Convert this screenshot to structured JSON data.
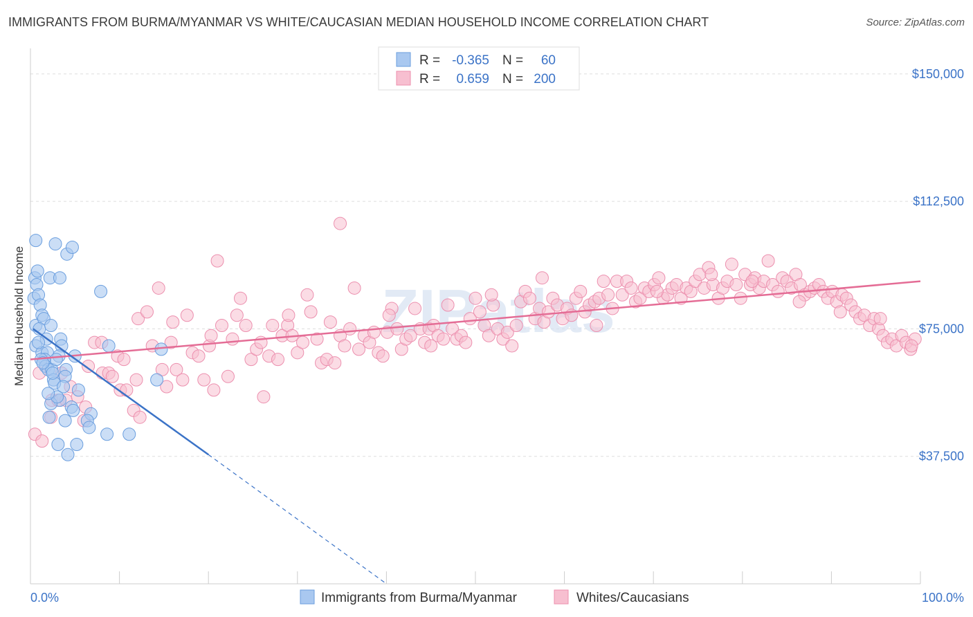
{
  "title": "IMMIGRANTS FROM BURMA/MYANMAR VS WHITE/CAUCASIAN MEDIAN HOUSEHOLD INCOME CORRELATION CHART",
  "source": "Source: ZipAtlas.com",
  "watermark": "ZIPatlas",
  "colors": {
    "blue_fill": "#a9c8f0",
    "blue_stroke": "#6a9ede",
    "blue_line": "#3b73c7",
    "pink_fill": "#f7bfd0",
    "pink_stroke": "#ec8fae",
    "pink_line": "#e46c95",
    "axis_text": "#3b73c7",
    "grid": "#dddddd"
  },
  "legend": {
    "rows": [
      {
        "r_label": "R = ",
        "r_value": "-0.365",
        "n_label": "N = ",
        "n_value": "60"
      },
      {
        "r_label": "R = ",
        "r_value": "0.659",
        "n_label": "N = ",
        "n_value": "200"
      }
    ]
  },
  "chart_data": {
    "type": "scatter",
    "title": "IMMIGRANTS FROM BURMA/MYANMAR VS WHITE/CAUCASIAN MEDIAN HOUSEHOLD INCOME CORRELATION CHART",
    "xlabel": "",
    "ylabel": "Median Household Income",
    "xlim": [
      0,
      100
    ],
    "ylim": [
      0,
      157500
    ],
    "x_tick_labels": [
      "0.0%",
      "100.0%"
    ],
    "y_ticks": [
      37500,
      75000,
      112500,
      150000
    ],
    "y_tick_labels": [
      "$37,500",
      "$75,000",
      "$112,500",
      "$150,000"
    ],
    "grid": true,
    "series": [
      {
        "name": "Immigrants from Burma/Myanmar",
        "color": "#a9c8f0",
        "r": -0.365,
        "n": 60,
        "trend": {
          "x0": 0.3,
          "y0": 75000,
          "x1": 20,
          "y1": 38000,
          "dash_x1": 40,
          "dash_y1": 0
        },
        "points": [
          [
            0.6,
            101000
          ],
          [
            0.5,
            90000
          ],
          [
            0.8,
            92000
          ],
          [
            0.7,
            88000
          ],
          [
            0.4,
            84000
          ],
          [
            0.9,
            85000
          ],
          [
            1.1,
            82000
          ],
          [
            0.6,
            76000
          ],
          [
            1.3,
            79000
          ],
          [
            1.5,
            78000
          ],
          [
            1.0,
            75000
          ],
          [
            2.3,
            76000
          ],
          [
            2.2,
            90000
          ],
          [
            2.8,
            100000
          ],
          [
            4.1,
            97000
          ],
          [
            4.7,
            99000
          ],
          [
            3.3,
            90000
          ],
          [
            0.6,
            70000
          ],
          [
            1.3,
            68000
          ],
          [
            1.9,
            68000
          ],
          [
            1.6,
            66000
          ],
          [
            1.2,
            66000
          ],
          [
            1.7,
            64000
          ],
          [
            2.0,
            63000
          ],
          [
            2.4,
            63000
          ],
          [
            3.4,
            72000
          ],
          [
            3.5,
            70000
          ],
          [
            3.2,
            67000
          ],
          [
            2.9,
            66000
          ],
          [
            4.0,
            63000
          ],
          [
            3.9,
            61000
          ],
          [
            2.6,
            60000
          ],
          [
            2.7,
            59000
          ],
          [
            3.7,
            58000
          ],
          [
            5.4,
            57000
          ],
          [
            3.3,
            54000
          ],
          [
            2.3,
            53000
          ],
          [
            4.6,
            52000
          ],
          [
            4.8,
            51000
          ],
          [
            6.8,
            50000
          ],
          [
            2.1,
            49000
          ],
          [
            3.9,
            48000
          ],
          [
            6.4,
            48000
          ],
          [
            6.6,
            46000
          ],
          [
            8.6,
            44000
          ],
          [
            3.1,
            41000
          ],
          [
            5.2,
            41000
          ],
          [
            4.2,
            38000
          ],
          [
            7.9,
            86000
          ],
          [
            8.8,
            70000
          ],
          [
            14.7,
            69000
          ],
          [
            14.2,
            60000
          ],
          [
            11.1,
            44000
          ],
          [
            1.8,
            72000
          ],
          [
            2.5,
            62000
          ],
          [
            0.9,
            71000
          ],
          [
            3.0,
            55000
          ],
          [
            1.4,
            65000
          ],
          [
            2.0,
            56000
          ],
          [
            5.0,
            67000
          ]
        ]
      },
      {
        "name": "Whites/Caucasians",
        "color": "#f7bfd0",
        "r": 0.659,
        "n": 200,
        "trend": {
          "x0": 0,
          "y0": 66000,
          "x1": 100,
          "y1": 89000
        },
        "points": [
          [
            0.5,
            44000
          ],
          [
            1.3,
            42000
          ],
          [
            2.4,
            54000
          ],
          [
            2.3,
            49000
          ],
          [
            3.1,
            54000
          ],
          [
            4.5,
            58000
          ],
          [
            4.0,
            54000
          ],
          [
            5.3,
            55000
          ],
          [
            6.2,
            52000
          ],
          [
            6.5,
            64000
          ],
          [
            7.2,
            71000
          ],
          [
            8.1,
            62000
          ],
          [
            8.8,
            62000
          ],
          [
            9.2,
            61000
          ],
          [
            9.8,
            67000
          ],
          [
            10.1,
            57000
          ],
          [
            10.8,
            57000
          ],
          [
            11.6,
            51000
          ],
          [
            12.3,
            49000
          ],
          [
            11.9,
            60000
          ],
          [
            12.1,
            78000
          ],
          [
            13.1,
            80000
          ],
          [
            13.7,
            70000
          ],
          [
            14.4,
            87000
          ],
          [
            14.8,
            63000
          ],
          [
            15.3,
            58000
          ],
          [
            15.8,
            71000
          ],
          [
            16.4,
            63000
          ],
          [
            17.1,
            60000
          ],
          [
            17.6,
            79000
          ],
          [
            18.2,
            68000
          ],
          [
            18.9,
            67000
          ],
          [
            19.5,
            60000
          ],
          [
            20.1,
            70000
          ],
          [
            20.6,
            57000
          ],
          [
            21.0,
            95000
          ],
          [
            21.5,
            76000
          ],
          [
            22.2,
            61000
          ],
          [
            22.7,
            72000
          ],
          [
            23.2,
            79000
          ],
          [
            23.6,
            84000
          ],
          [
            24.2,
            76000
          ],
          [
            24.8,
            66000
          ],
          [
            25.4,
            69000
          ],
          [
            25.9,
            71000
          ],
          [
            26.2,
            55000
          ],
          [
            26.8,
            67000
          ],
          [
            27.2,
            76000
          ],
          [
            27.8,
            66000
          ],
          [
            28.3,
            73000
          ],
          [
            28.9,
            76000
          ],
          [
            29.4,
            73000
          ],
          [
            30.0,
            68000
          ],
          [
            30.6,
            71000
          ],
          [
            31.1,
            85000
          ],
          [
            31.5,
            80000
          ],
          [
            32.2,
            72000
          ],
          [
            32.7,
            65000
          ],
          [
            33.3,
            66000
          ],
          [
            33.7,
            77000
          ],
          [
            34.2,
            65000
          ],
          [
            34.8,
            73000
          ],
          [
            34.8,
            106000
          ],
          [
            35.3,
            70000
          ],
          [
            35.9,
            75000
          ],
          [
            36.4,
            87000
          ],
          [
            36.9,
            69000
          ],
          [
            37.5,
            73000
          ],
          [
            38.1,
            71000
          ],
          [
            38.6,
            74000
          ],
          [
            39.1,
            68000
          ],
          [
            39.6,
            67000
          ],
          [
            40.1,
            74000
          ],
          [
            40.6,
            81000
          ],
          [
            41.2,
            75000
          ],
          [
            41.7,
            69000
          ],
          [
            42.2,
            72000
          ],
          [
            42.7,
            73000
          ],
          [
            43.2,
            81000
          ],
          [
            43.8,
            75000
          ],
          [
            44.3,
            71000
          ],
          [
            44.8,
            75000
          ],
          [
            45.3,
            76000
          ],
          [
            45.8,
            73000
          ],
          [
            46.4,
            72000
          ],
          [
            46.9,
            82000
          ],
          [
            47.4,
            75000
          ],
          [
            47.9,
            72000
          ],
          [
            48.4,
            73000
          ],
          [
            48.9,
            71000
          ],
          [
            49.4,
            78000
          ],
          [
            50.0,
            84000
          ],
          [
            50.5,
            80000
          ],
          [
            51.0,
            76000
          ],
          [
            51.5,
            73000
          ],
          [
            52.0,
            82000
          ],
          [
            52.5,
            75000
          ],
          [
            53.1,
            72000
          ],
          [
            53.6,
            74000
          ],
          [
            54.1,
            70000
          ],
          [
            54.6,
            76000
          ],
          [
            55.1,
            83000
          ],
          [
            55.6,
            86000
          ],
          [
            56.1,
            84000
          ],
          [
            56.7,
            78000
          ],
          [
            57.2,
            81000
          ],
          [
            57.7,
            77000
          ],
          [
            58.2,
            80000
          ],
          [
            58.7,
            84000
          ],
          [
            59.2,
            82000
          ],
          [
            59.8,
            78000
          ],
          [
            60.3,
            81000
          ],
          [
            60.8,
            79000
          ],
          [
            61.3,
            84000
          ],
          [
            61.8,
            86000
          ],
          [
            62.3,
            80000
          ],
          [
            62.8,
            82000
          ],
          [
            63.4,
            83000
          ],
          [
            63.9,
            84000
          ],
          [
            64.4,
            89000
          ],
          [
            64.9,
            85000
          ],
          [
            65.4,
            81000
          ],
          [
            65.9,
            89000
          ],
          [
            66.5,
            85000
          ],
          [
            67.0,
            89000
          ],
          [
            67.5,
            87000
          ],
          [
            68.0,
            83000
          ],
          [
            68.5,
            84000
          ],
          [
            69.0,
            87000
          ],
          [
            69.5,
            86000
          ],
          [
            70.1,
            88000
          ],
          [
            70.6,
            90000
          ],
          [
            71.1,
            84000
          ],
          [
            71.6,
            85000
          ],
          [
            72.1,
            87000
          ],
          [
            72.6,
            88000
          ],
          [
            73.1,
            84000
          ],
          [
            73.7,
            87000
          ],
          [
            74.2,
            86000
          ],
          [
            74.7,
            89000
          ],
          [
            75.2,
            91000
          ],
          [
            75.7,
            87000
          ],
          [
            76.2,
            93000
          ],
          [
            76.7,
            88000
          ],
          [
            77.3,
            84000
          ],
          [
            77.8,
            87000
          ],
          [
            78.3,
            89000
          ],
          [
            78.8,
            94000
          ],
          [
            79.3,
            88000
          ],
          [
            79.8,
            84000
          ],
          [
            80.3,
            91000
          ],
          [
            80.9,
            88000
          ],
          [
            81.4,
            90000
          ],
          [
            81.9,
            87000
          ],
          [
            82.4,
            89000
          ],
          [
            82.9,
            95000
          ],
          [
            83.4,
            88000
          ],
          [
            84.0,
            86000
          ],
          [
            84.5,
            90000
          ],
          [
            85.0,
            89000
          ],
          [
            85.5,
            87000
          ],
          [
            86.0,
            91000
          ],
          [
            86.5,
            88000
          ],
          [
            87.0,
            85000
          ],
          [
            87.6,
            86000
          ],
          [
            88.1,
            87000
          ],
          [
            88.6,
            88000
          ],
          [
            89.1,
            86000
          ],
          [
            89.6,
            84000
          ],
          [
            90.1,
            86000
          ],
          [
            90.6,
            83000
          ],
          [
            91.2,
            85000
          ],
          [
            91.7,
            84000
          ],
          [
            92.2,
            82000
          ],
          [
            92.7,
            80000
          ],
          [
            93.2,
            78000
          ],
          [
            93.7,
            79000
          ],
          [
            94.3,
            76000
          ],
          [
            94.8,
            78000
          ],
          [
            95.3,
            75000
          ],
          [
            95.8,
            73000
          ],
          [
            96.3,
            71000
          ],
          [
            96.8,
            72000
          ],
          [
            97.3,
            70000
          ],
          [
            97.9,
            73000
          ],
          [
            98.4,
            71000
          ],
          [
            98.9,
            69000
          ],
          [
            99.4,
            72000
          ],
          [
            1.0,
            62000
          ],
          [
            6.0,
            48000
          ],
          [
            10.5,
            66000
          ],
          [
            16.0,
            77000
          ],
          [
            20.3,
            73000
          ],
          [
            29.0,
            79000
          ],
          [
            40.3,
            79000
          ],
          [
            45.0,
            70000
          ],
          [
            51.8,
            85000
          ],
          [
            57.5,
            90000
          ],
          [
            63.6,
            76000
          ],
          [
            70.4,
            86000
          ],
          [
            76.5,
            91000
          ],
          [
            81.1,
            89000
          ],
          [
            86.4,
            83000
          ],
          [
            91.0,
            80000
          ],
          [
            95.5,
            78000
          ],
          [
            99.0,
            70000
          ],
          [
            3.5,
            62000
          ],
          [
            8.0,
            71000
          ]
        ]
      }
    ]
  },
  "bottom_legend": [
    "Immigrants from Burma/Myanmar",
    "Whites/Caucasians"
  ]
}
